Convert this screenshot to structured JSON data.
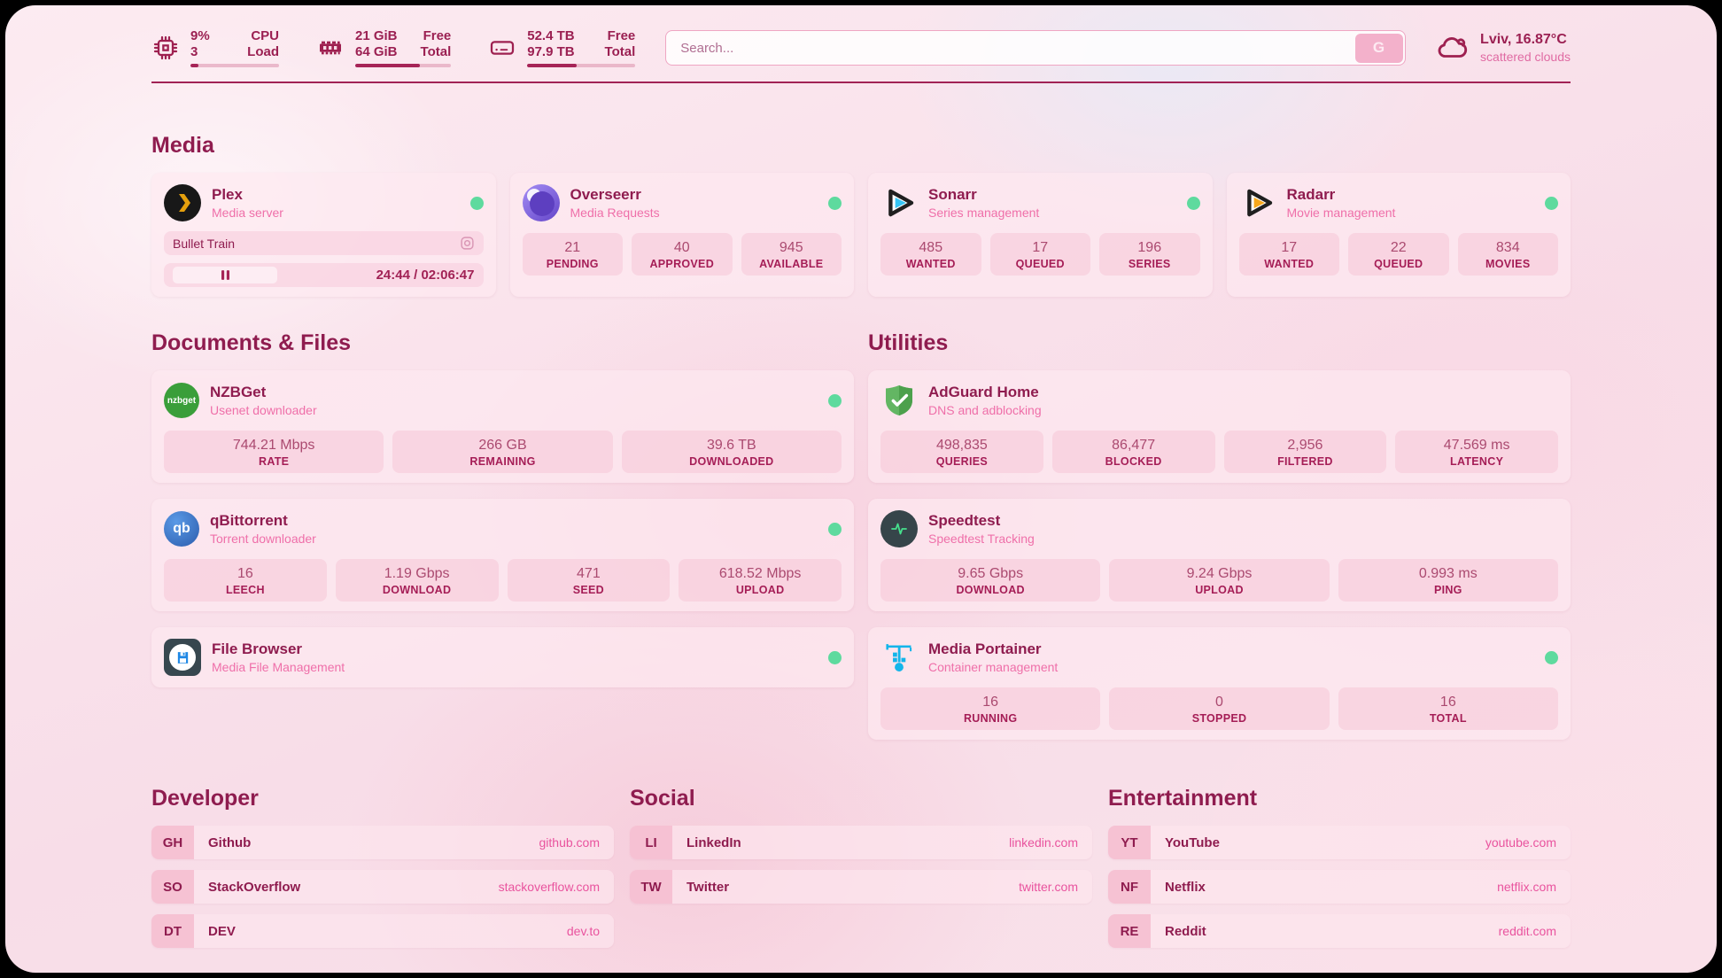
{
  "colors": {
    "accent_dark": "#8f1c4f",
    "accent_pink": "#ef6fa9",
    "status_online": "#5eda9e",
    "progress_fill": "#a62457",
    "background_tint": "#f8dde8"
  },
  "icons": {
    "cpu": "chip-icon",
    "memory": "ram-stick-icon",
    "disk": "drive-icon",
    "weather": "cloud-icon",
    "player_state": "pause-icon",
    "player_media": "video-camera-icon",
    "status": "green-dot"
  },
  "top_bar": {
    "cpu": {
      "value_top": "9%",
      "value_bottom": "3",
      "label_top": "CPU",
      "label_bottom": "Load",
      "progress_pct": 9
    },
    "memory": {
      "value_top": "21 GiB",
      "value_bottom": "64 GiB",
      "label_top": "Free",
      "label_bottom": "Total",
      "progress_pct": 67
    },
    "disk": {
      "value_top": "52.4 TB",
      "value_bottom": "97.9 TB",
      "label_top": "Free",
      "label_bottom": "Total",
      "progress_pct": 46
    },
    "search": {
      "placeholder": "Search...",
      "button_label": "G"
    },
    "weather": {
      "location": "Lviv, 16.87°C",
      "condition": "scattered clouds"
    }
  },
  "sections": {
    "media": {
      "title": "Media",
      "cards": [
        {
          "name": "Plex",
          "description": "Media server",
          "player": {
            "now_playing": "Bullet Train",
            "time": "24:44 / 02:06:47"
          }
        },
        {
          "name": "Overseerr",
          "description": "Media Requests",
          "stats": [
            {
              "value": "21",
              "label": "PENDING"
            },
            {
              "value": "40",
              "label": "APPROVED"
            },
            {
              "value": "945",
              "label": "AVAILABLE"
            }
          ]
        },
        {
          "name": "Sonarr",
          "description": "Series management",
          "stats": [
            {
              "value": "485",
              "label": "WANTED"
            },
            {
              "value": "17",
              "label": "QUEUED"
            },
            {
              "value": "196",
              "label": "SERIES"
            }
          ]
        },
        {
          "name": "Radarr",
          "description": "Movie management",
          "stats": [
            {
              "value": "17",
              "label": "WANTED"
            },
            {
              "value": "22",
              "label": "QUEUED"
            },
            {
              "value": "834",
              "label": "MOVIES"
            }
          ]
        }
      ]
    },
    "documents": {
      "title": "Documents & Files",
      "cards": [
        {
          "name": "NZBGet",
          "description": "Usenet downloader",
          "icon_text": "nzbget",
          "stats": [
            {
              "value": "744.21 Mbps",
              "label": "RATE"
            },
            {
              "value": "266 GB",
              "label": "REMAINING"
            },
            {
              "value": "39.6 TB",
              "label": "DOWNLOADED"
            }
          ]
        },
        {
          "name": "qBittorrent",
          "description": "Torrent downloader",
          "icon_text": "qb",
          "stats": [
            {
              "value": "16",
              "label": "LEECH"
            },
            {
              "value": "1.19 Gbps",
              "label": "DOWNLOAD"
            },
            {
              "value": "471",
              "label": "SEED"
            },
            {
              "value": "618.52 Mbps",
              "label": "UPLOAD"
            }
          ]
        },
        {
          "name": "File Browser",
          "description": "Media File Management"
        }
      ]
    },
    "utilities": {
      "title": "Utilities",
      "cards": [
        {
          "name": "AdGuard Home",
          "description": "DNS and adblocking",
          "stats": [
            {
              "value": "498,835",
              "label": "QUERIES"
            },
            {
              "value": "86,477",
              "label": "BLOCKED"
            },
            {
              "value": "2,956",
              "label": "FILTERED"
            },
            {
              "value": "47.569 ms",
              "label": "LATENCY"
            }
          ]
        },
        {
          "name": "Speedtest",
          "description": "Speedtest Tracking",
          "stats": [
            {
              "value": "9.65 Gbps",
              "label": "DOWNLOAD"
            },
            {
              "value": "9.24 Gbps",
              "label": "UPLOAD"
            },
            {
              "value": "0.993 ms",
              "label": "PING"
            }
          ]
        },
        {
          "name": "Media Portainer",
          "description": "Container management",
          "stats": [
            {
              "value": "16",
              "label": "RUNNING"
            },
            {
              "value": "0",
              "label": "STOPPED"
            },
            {
              "value": "16",
              "label": "TOTAL"
            }
          ]
        }
      ]
    }
  },
  "bookmarks": {
    "developer": {
      "title": "Developer",
      "items": [
        {
          "abbr": "GH",
          "name": "Github",
          "url": "github.com"
        },
        {
          "abbr": "SO",
          "name": "StackOverflow",
          "url": "stackoverflow.com"
        },
        {
          "abbr": "DT",
          "name": "DEV",
          "url": "dev.to"
        }
      ]
    },
    "social": {
      "title": "Social",
      "items": [
        {
          "abbr": "LI",
          "name": "LinkedIn",
          "url": "linkedin.com"
        },
        {
          "abbr": "TW",
          "name": "Twitter",
          "url": "twitter.com"
        }
      ]
    },
    "entertainment": {
      "title": "Entertainment",
      "items": [
        {
          "abbr": "YT",
          "name": "YouTube",
          "url": "youtube.com"
        },
        {
          "abbr": "NF",
          "name": "Netflix",
          "url": "netflix.com"
        },
        {
          "abbr": "RE",
          "name": "Reddit",
          "url": "reddit.com"
        }
      ]
    }
  }
}
